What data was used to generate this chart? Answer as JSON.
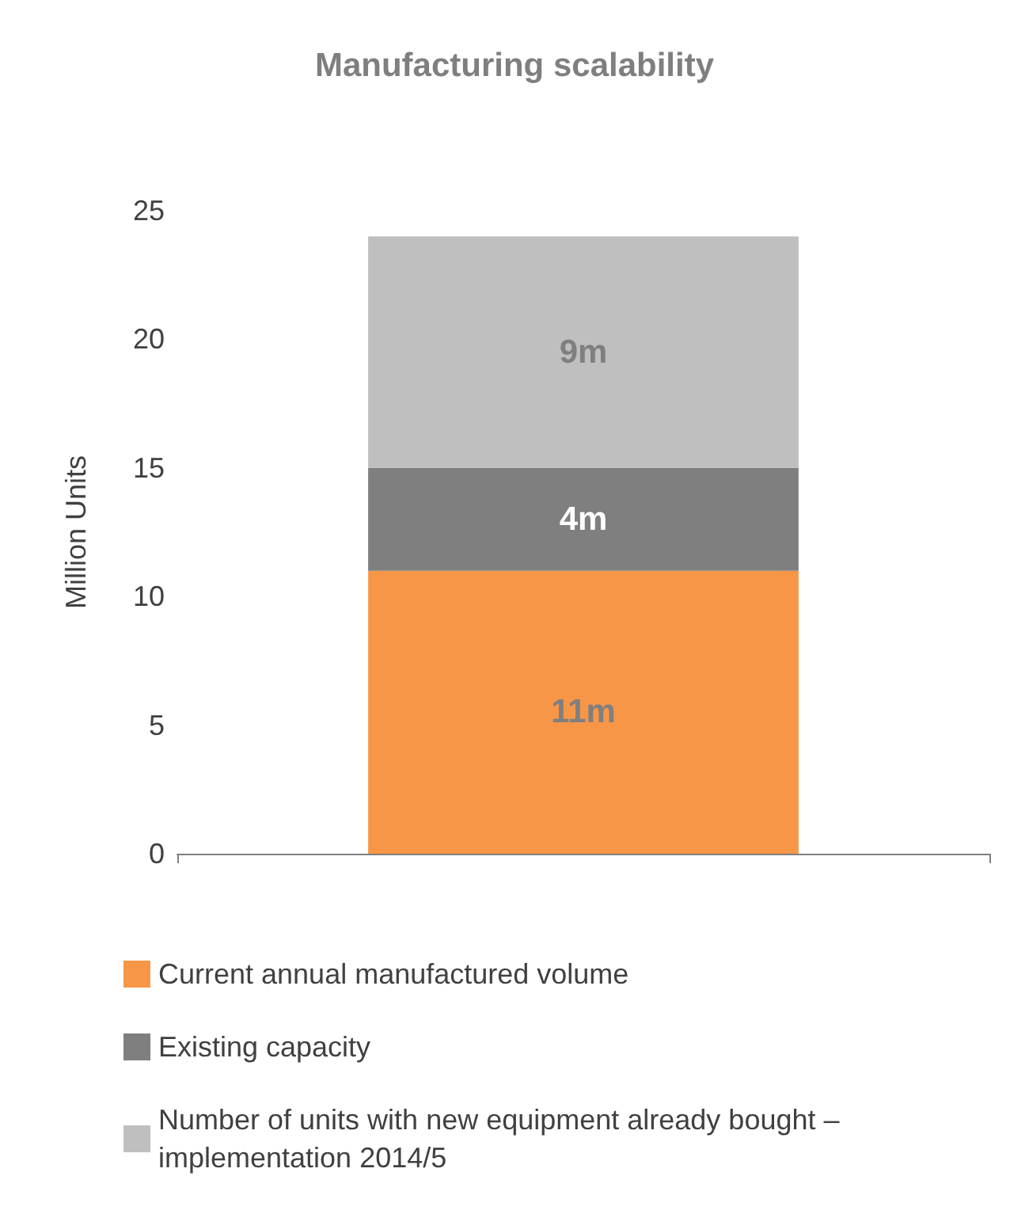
{
  "chart_data": {
    "type": "bar",
    "stacked": true,
    "title": "Manufacturing scalability",
    "ylabel": "Million Units",
    "categories": [
      null
    ],
    "series": [
      {
        "name": "Current annual manufactured volume",
        "color": "#f79646",
        "values": [
          11
        ],
        "value_labels": [
          "11m"
        ]
      },
      {
        "name": "Existing capacity",
        "color": "#7f7f7f",
        "values": [
          4
        ],
        "value_labels": [
          "4m"
        ]
      },
      {
        "name": "Number of units with new equipment already bought – implementation 2014/5",
        "color": "#bfbfbf",
        "values": [
          9
        ],
        "value_labels": [
          "9m"
        ]
      }
    ],
    "ylim": [
      0,
      25
    ],
    "yticks": [
      0,
      5,
      10,
      15,
      20,
      25
    ],
    "grid": false,
    "legend": "bottom"
  }
}
